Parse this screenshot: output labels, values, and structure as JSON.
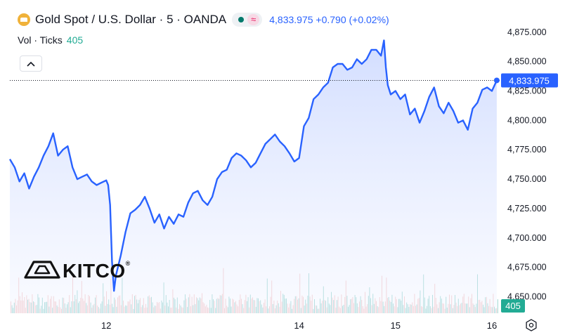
{
  "header": {
    "title": "Gold Spot / U.S. Dollar · 5 · OANDA",
    "wave_symbol": "≈",
    "price_text": "4,833.975 +0.790 (+0.02%)"
  },
  "volume_legend": {
    "label": "Vol · Ticks",
    "value": "405"
  },
  "watermark": {
    "text": "KITCO",
    "mark": "®"
  },
  "icons": {
    "collapse": "chevron-up-icon",
    "settings": "gear-icon",
    "logo": "gold-bar-icon"
  },
  "colors": {
    "line": "#2962ff",
    "area": "#dbe4ff",
    "vol_up": "#4db6ac",
    "vol_down": "#ef9a9a",
    "badge": "#22ab94"
  },
  "chart_data": {
    "type": "area",
    "title": "Gold Spot / U.S. Dollar · 5 · OANDA",
    "xlabel": "",
    "ylabel": "",
    "x_ticks": [
      {
        "x": 12,
        "label": "12"
      },
      {
        "x": 14,
        "label": "14"
      },
      {
        "x": 15,
        "label": "15"
      },
      {
        "x": 16,
        "label": "16"
      }
    ],
    "y_ticks": [
      "4,650.000",
      "4,675.000",
      "4,700.000",
      "4,725.000",
      "4,750.000",
      "4,775.000",
      "4,800.000",
      "4,825.000",
      "4,850.000",
      "4,875.000"
    ],
    "ylim": [
      4636,
      4888
    ],
    "xlim": [
      11.0,
      16.08
    ],
    "grid": false,
    "last_value": 4833.975,
    "last_value_label": "4,833.975",
    "volume_last_label": "405",
    "series": [
      {
        "x": [
          11.0,
          11.05,
          11.1,
          11.15,
          11.2,
          11.25,
          11.3,
          11.35,
          11.4,
          11.45,
          11.5,
          11.55,
          11.6,
          11.65,
          11.7,
          11.75,
          11.8,
          11.85,
          11.9,
          11.95,
          12.0,
          12.02,
          12.04,
          12.06,
          12.08,
          12.1,
          12.15,
          12.2,
          12.25,
          12.3,
          12.35,
          12.4,
          12.45,
          12.5,
          12.55,
          12.6,
          12.65,
          12.7,
          12.75,
          12.8,
          12.85,
          12.9,
          12.95,
          13.0,
          13.05,
          13.1,
          13.15,
          13.2,
          13.25,
          13.3,
          13.35,
          13.4,
          13.45,
          13.5,
          13.55,
          13.6,
          13.65,
          13.7,
          13.75,
          13.8,
          13.85,
          13.9,
          13.95,
          14.0,
          14.05,
          14.1,
          14.15,
          14.2,
          14.25,
          14.3,
          14.35,
          14.4,
          14.45,
          14.5,
          14.55,
          14.6,
          14.65,
          14.7,
          14.75,
          14.8,
          14.85,
          14.88,
          14.9,
          14.92,
          14.95,
          15.0,
          15.05,
          15.1,
          15.15,
          15.2,
          15.25,
          15.3,
          15.35,
          15.4,
          15.45,
          15.5,
          15.55,
          15.6,
          15.65,
          15.7,
          15.75,
          15.8,
          15.85,
          15.9,
          15.95,
          16.0,
          16.05
        ],
        "values": [
          4767,
          4760,
          4748,
          4755,
          4742,
          4752,
          4760,
          4770,
          4778,
          4789,
          4770,
          4775,
          4778,
          4760,
          4750,
          4752,
          4754,
          4748,
          4745,
          4747,
          4749,
          4745,
          4728,
          4680,
          4655,
          4668,
          4685,
          4705,
          4721,
          4724,
          4728,
          4735,
          4725,
          4713,
          4720,
          4708,
          4718,
          4712,
          4720,
          4718,
          4730,
          4738,
          4740,
          4732,
          4728,
          4735,
          4750,
          4756,
          4758,
          4768,
          4772,
          4770,
          4766,
          4760,
          4764,
          4772,
          4780,
          4784,
          4788,
          4782,
          4778,
          4772,
          4765,
          4768,
          4795,
          4802,
          4818,
          4822,
          4828,
          4832,
          4845,
          4848,
          4848,
          4843,
          4845,
          4852,
          4848,
          4852,
          4860,
          4860,
          4855,
          4868,
          4845,
          4830,
          4822,
          4825,
          4818,
          4822,
          4805,
          4810,
          4798,
          4808,
          4820,
          4828,
          4812,
          4806,
          4815,
          4808,
          4798,
          4800,
          4792,
          4810,
          4815,
          4826,
          4828,
          4825,
          4833.975
        ]
      }
    ]
  }
}
